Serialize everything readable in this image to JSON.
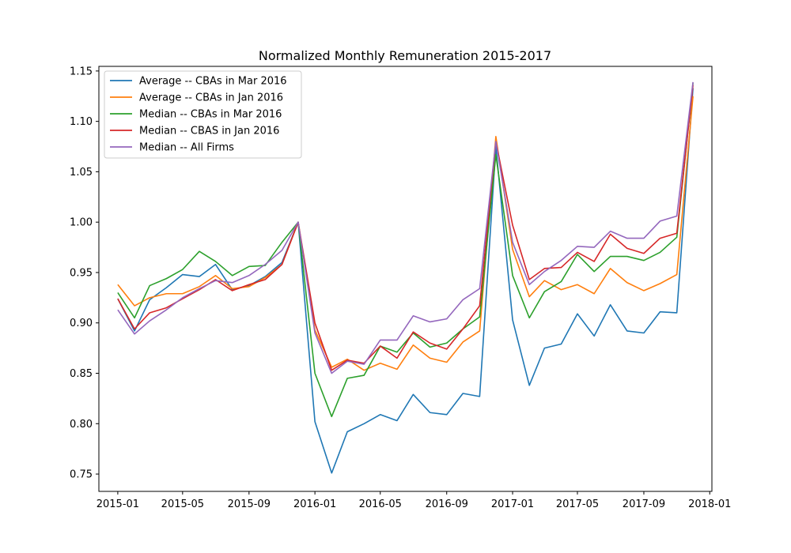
{
  "chart_data": {
    "type": "line",
    "title": "Normalized Monthly Remuneration 2015-2017",
    "xlabel": "",
    "ylabel": "",
    "x_axis_type": "date",
    "xlim": [
      "2014-11-27",
      "2018-01-05"
    ],
    "ylim": [
      0.7328,
      1.1546
    ],
    "grid": false,
    "legend_position": "upper-left",
    "x_ticks": [
      "2015-01",
      "2015-05",
      "2015-09",
      "2016-01",
      "2016-05",
      "2016-09",
      "2017-01",
      "2017-05",
      "2017-09",
      "2018-01"
    ],
    "y_ticks": [
      "0.75",
      "0.80",
      "0.85",
      "0.90",
      "0.95",
      "1.00",
      "1.05",
      "1.10",
      "1.15"
    ],
    "x": [
      "2015-01-01",
      "2015-02-01",
      "2015-03-01",
      "2015-04-01",
      "2015-05-01",
      "2015-06-01",
      "2015-07-01",
      "2015-08-01",
      "2015-09-01",
      "2015-10-01",
      "2015-11-01",
      "2015-12-01",
      "2016-01-01",
      "2016-02-01",
      "2016-03-01",
      "2016-04-01",
      "2016-05-01",
      "2016-06-01",
      "2016-07-01",
      "2016-08-01",
      "2016-09-01",
      "2016-10-01",
      "2016-11-01",
      "2016-12-01",
      "2017-01-01",
      "2017-02-01",
      "2017-03-01",
      "2017-04-01",
      "2017-05-01",
      "2017-06-01",
      "2017-07-01",
      "2017-08-01",
      "2017-09-01",
      "2017-10-01",
      "2017-11-01",
      "2017-12-01"
    ],
    "series": [
      {
        "name": "Average -- CBAs in Mar 2016",
        "color": "#1f77b4",
        "values": [
          0.924,
          0.892,
          0.923,
          0.935,
          0.948,
          0.946,
          0.958,
          0.933,
          0.937,
          0.946,
          0.96,
          1.0,
          0.802,
          0.751,
          0.792,
          0.8,
          0.809,
          0.803,
          0.829,
          0.811,
          0.809,
          0.83,
          0.827,
          1.075,
          0.903,
          0.838,
          0.875,
          0.879,
          0.909,
          0.887,
          0.918,
          0.892,
          0.89,
          0.911,
          0.91,
          1.133
        ]
      },
      {
        "name": "Average -- CBAs in Jan 2016",
        "color": "#ff7f0e",
        "values": [
          0.938,
          0.917,
          0.925,
          0.929,
          0.929,
          0.936,
          0.947,
          0.934,
          0.936,
          0.945,
          0.958,
          1.0,
          0.893,
          0.856,
          0.864,
          0.853,
          0.86,
          0.854,
          0.878,
          0.865,
          0.861,
          0.881,
          0.892,
          1.085,
          0.973,
          0.926,
          0.942,
          0.933,
          0.938,
          0.929,
          0.954,
          0.94,
          0.932,
          0.939,
          0.948,
          1.125
        ]
      },
      {
        "name": "Median -- CBAs in Mar 2016",
        "color": "#2ca02c",
        "values": [
          0.93,
          0.905,
          0.937,
          0.944,
          0.953,
          0.971,
          0.961,
          0.947,
          0.956,
          0.957,
          0.98,
          1.0,
          0.85,
          0.807,
          0.845,
          0.848,
          0.877,
          0.871,
          0.89,
          0.876,
          0.88,
          0.894,
          0.906,
          1.067,
          0.947,
          0.905,
          0.931,
          0.941,
          0.968,
          0.951,
          0.966,
          0.966,
          0.962,
          0.97,
          0.985,
          1.138
        ]
      },
      {
        "name": "Median -- CBAS in Jan 2016",
        "color": "#d62728",
        "values": [
          0.924,
          0.894,
          0.91,
          0.915,
          0.924,
          0.933,
          0.943,
          0.932,
          0.938,
          0.943,
          0.958,
          1.0,
          0.9,
          0.853,
          0.863,
          0.86,
          0.877,
          0.865,
          0.891,
          0.88,
          0.874,
          0.894,
          0.917,
          1.08,
          0.997,
          0.943,
          0.954,
          0.955,
          0.97,
          0.961,
          0.988,
          0.974,
          0.969,
          0.984,
          0.989,
          1.136
        ]
      },
      {
        "name": "Median -- All Firms",
        "color": "#9467bd",
        "values": [
          0.913,
          0.889,
          0.902,
          0.913,
          0.925,
          0.934,
          0.942,
          0.94,
          0.947,
          0.958,
          0.972,
          1.0,
          0.89,
          0.85,
          0.862,
          0.859,
          0.883,
          0.883,
          0.907,
          0.901,
          0.904,
          0.923,
          0.934,
          1.08,
          0.98,
          0.938,
          0.951,
          0.962,
          0.976,
          0.975,
          0.991,
          0.984,
          0.984,
          1.001,
          1.006,
          1.139
        ]
      }
    ]
  }
}
